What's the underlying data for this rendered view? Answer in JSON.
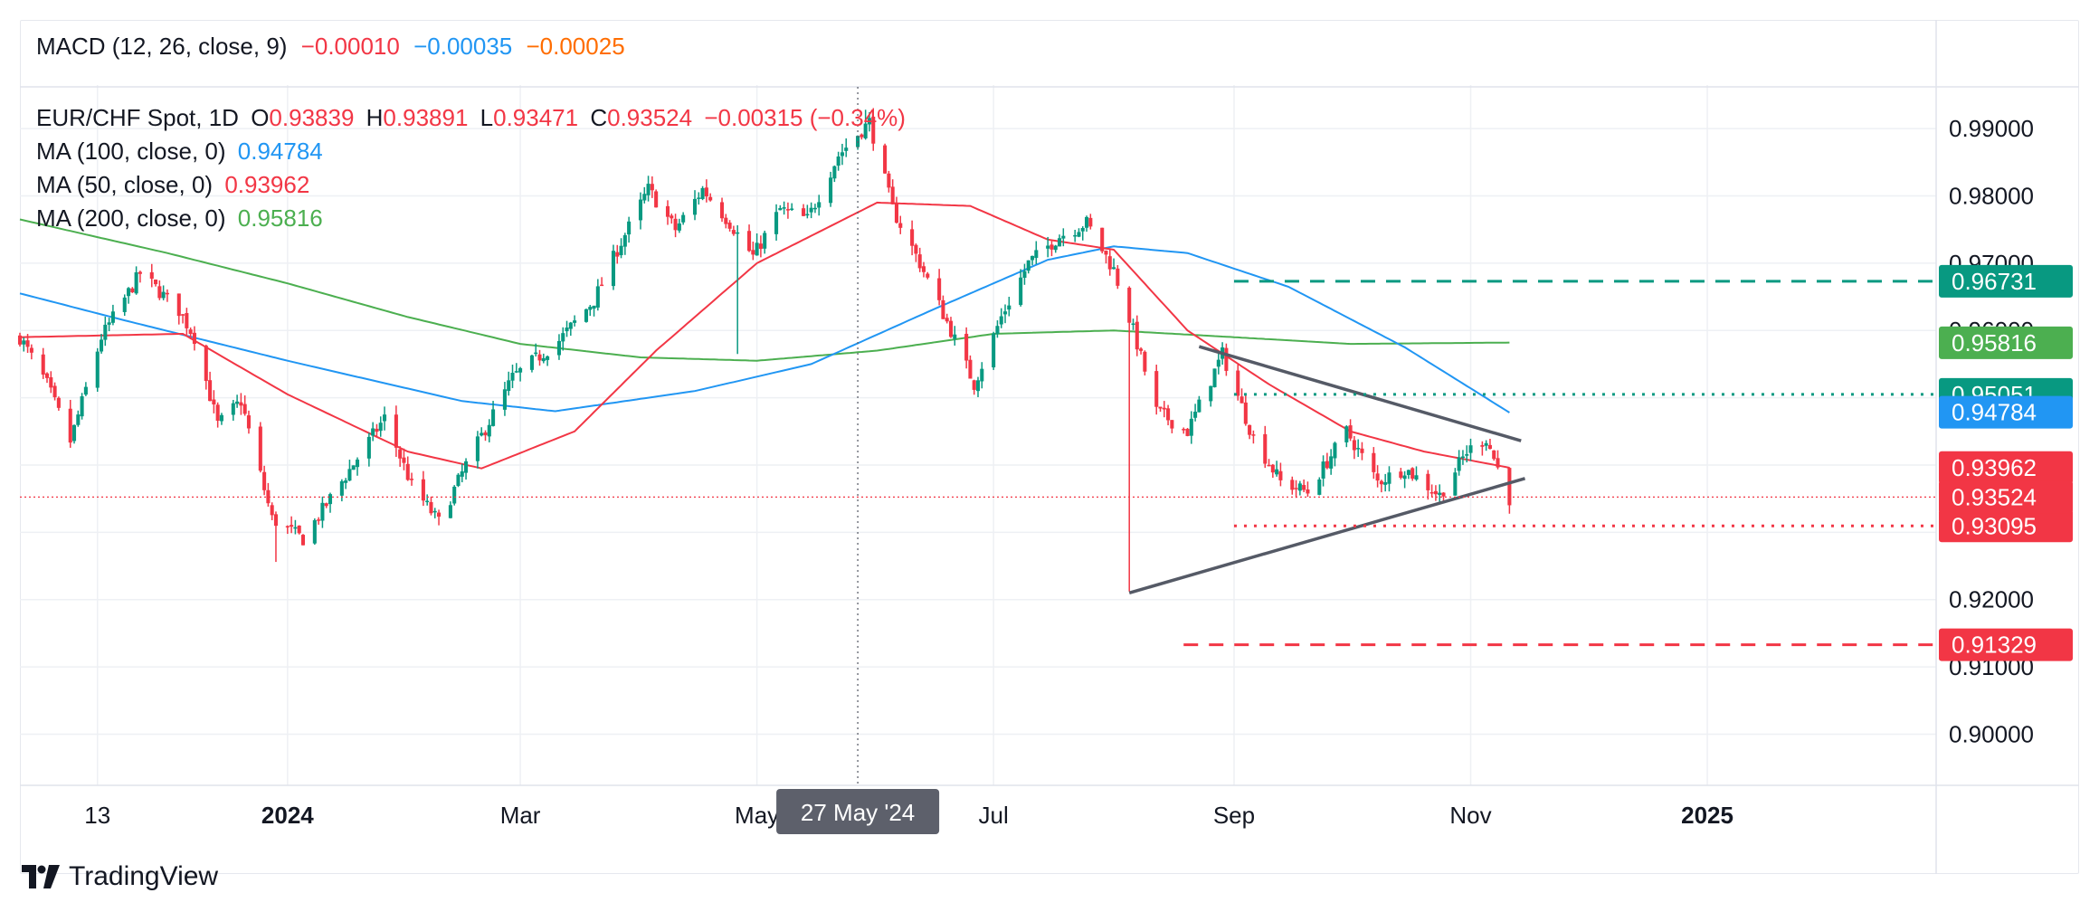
{
  "macd": {
    "label": "MACD (12, 26, close, 9)",
    "v1": "−0.00010",
    "v2": "−0.00035",
    "v3": "−0.00025"
  },
  "legend": {
    "symbol": "EUR/CHF Spot, 1D",
    "o_label": "O",
    "o_value": "0.93839",
    "h_label": "H",
    "h_value": "0.93891",
    "l_label": "L",
    "l_value": "0.93471",
    "c_label": "C",
    "c_value": "0.93524",
    "change": "−0.00315 (−0.34%)",
    "ma100_label": "MA (100, close, 0)",
    "ma100_value": "0.94784",
    "ma50_label": "MA (50, close, 0)",
    "ma50_value": "0.93962",
    "ma200_label": "MA (200, close, 0)",
    "ma200_value": "0.95816"
  },
  "brand": {
    "name": "TradingView"
  },
  "chart_data": {
    "type": "candlestick",
    "y_axis_ticks": [
      0.99,
      0.98,
      0.97,
      0.96,
      0.95,
      0.94,
      0.93,
      0.92,
      0.91,
      0.9
    ],
    "y_tick_labels": [
      "0.99000",
      "0.98000",
      "0.97000",
      "0.96000",
      "0.95000",
      "0.94000",
      "0.93000",
      "0.92000",
      "0.91000",
      "0.90000"
    ],
    "ylim": [
      0.8924,
      0.9962
    ],
    "x_tick_labels": [
      {
        "label": "13",
        "date": "2023-11-13",
        "bold": false
      },
      {
        "label": "2024",
        "date": "2024-01-01",
        "bold": true
      },
      {
        "label": "Mar",
        "date": "2024-03-01",
        "bold": false
      },
      {
        "label": "May",
        "date": "2024-05-01",
        "bold": false
      },
      {
        "label": "Jul",
        "date": "2024-07-01",
        "bold": false
      },
      {
        "label": "Sep",
        "date": "2024-09-01",
        "bold": false
      },
      {
        "label": "Nov",
        "date": "2024-11-01",
        "bold": false
      },
      {
        "label": "2025",
        "date": "2025-01-01",
        "bold": true
      }
    ],
    "crosshair": {
      "date": "2024-05-27",
      "label": "27 May '24"
    },
    "price_anchors": [
      [
        "2023-10-24",
        0.959
      ],
      [
        "2023-10-31",
        0.952
      ],
      [
        "2023-11-06",
        0.9435
      ],
      [
        "2023-11-14",
        0.959
      ],
      [
        "2023-11-24",
        0.9685
      ],
      [
        "2023-12-04",
        0.963
      ],
      [
        "2023-12-08",
        0.959
      ],
      [
        "2023-12-14",
        0.946
      ],
      [
        "2023-12-20",
        0.9495
      ],
      [
        "2023-12-28",
        0.932
      ],
      [
        "2024-01-05",
        0.929
      ],
      [
        "2024-01-12",
        0.935
      ],
      [
        "2024-01-26",
        0.947
      ],
      [
        "2024-02-02",
        0.937
      ],
      [
        "2024-02-09",
        0.9315
      ],
      [
        "2024-02-16",
        0.94
      ],
      [
        "2024-02-28",
        0.953
      ],
      [
        "2024-03-11",
        0.9585
      ],
      [
        "2024-03-20",
        0.9645
      ],
      [
        "2024-03-26",
        0.972
      ],
      [
        "2024-04-03",
        0.981
      ],
      [
        "2024-04-10",
        0.975
      ],
      [
        "2024-04-17",
        0.981
      ],
      [
        "2024-04-24",
        0.976
      ],
      [
        "2024-04-30",
        0.971
      ],
      [
        "2024-05-07",
        0.978
      ],
      [
        "2024-05-14",
        0.9765
      ],
      [
        "2024-05-22",
        0.986
      ],
      [
        "2024-05-30",
        0.991
      ],
      [
        "2024-06-05",
        0.978
      ],
      [
        "2024-06-12",
        0.97
      ],
      [
        "2024-06-20",
        0.96
      ],
      [
        "2024-06-26",
        0.952
      ],
      [
        "2024-07-03",
        0.962
      ],
      [
        "2024-07-10",
        0.97
      ],
      [
        "2024-07-18",
        0.974
      ],
      [
        "2024-07-25",
        0.976
      ],
      [
        "2024-08-01",
        0.969
      ],
      [
        "2024-08-06",
        0.96
      ],
      [
        "2024-08-12",
        0.948
      ],
      [
        "2024-08-20",
        0.945
      ],
      [
        "2024-08-29",
        0.9565
      ],
      [
        "2024-09-06",
        0.944
      ],
      [
        "2024-09-13",
        0.9375
      ],
      [
        "2024-09-20",
        0.936
      ],
      [
        "2024-09-30",
        0.945
      ],
      [
        "2024-10-08",
        0.9375
      ],
      [
        "2024-10-15",
        0.9395
      ],
      [
        "2024-10-24",
        0.9355
      ],
      [
        "2024-10-31",
        0.942
      ],
      [
        "2024-11-05",
        0.944
      ],
      [
        "2024-11-11",
        0.935
      ]
    ],
    "wick_extremes": [
      {
        "date": "2023-12-29",
        "low": 0.9256
      },
      {
        "date": "2024-04-26",
        "low": 0.9565
      },
      {
        "date": "2024-05-29",
        "high": 0.9928
      },
      {
        "date": "2024-08-05",
        "low": 0.9212
      }
    ],
    "ma50_anchors": [
      [
        "2023-10-24",
        0.959
      ],
      [
        "2023-12-05",
        0.9595
      ],
      [
        "2024-01-01",
        0.9505
      ],
      [
        "2024-02-01",
        0.942
      ],
      [
        "2024-02-20",
        0.9395
      ],
      [
        "2024-03-15",
        0.945
      ],
      [
        "2024-04-05",
        0.957
      ],
      [
        "2024-05-01",
        0.97
      ],
      [
        "2024-06-01",
        0.979
      ],
      [
        "2024-06-25",
        0.9785
      ],
      [
        "2024-07-15",
        0.9735
      ],
      [
        "2024-08-01",
        0.972
      ],
      [
        "2024-08-20",
        0.96
      ],
      [
        "2024-09-10",
        0.952
      ],
      [
        "2024-10-01",
        0.945
      ],
      [
        "2024-10-20",
        0.942
      ],
      [
        "2024-11-11",
        0.9396
      ]
    ],
    "ma100_anchors": [
      [
        "2023-10-24",
        0.9655
      ],
      [
        "2023-11-20",
        0.9615
      ],
      [
        "2024-01-01",
        0.9555
      ],
      [
        "2024-02-15",
        0.9495
      ],
      [
        "2024-03-10",
        0.948
      ],
      [
        "2024-04-15",
        0.951
      ],
      [
        "2024-05-15",
        0.955
      ],
      [
        "2024-06-15",
        0.963
      ],
      [
        "2024-07-15",
        0.9705
      ],
      [
        "2024-08-01",
        0.9725
      ],
      [
        "2024-08-20",
        0.9715
      ],
      [
        "2024-09-15",
        0.9665
      ],
      [
        "2024-10-15",
        0.9575
      ],
      [
        "2024-11-11",
        0.9478
      ]
    ],
    "ma200_anchors": [
      [
        "2023-10-24",
        0.9765
      ],
      [
        "2023-12-01",
        0.9715
      ],
      [
        "2024-01-01",
        0.967
      ],
      [
        "2024-02-01",
        0.962
      ],
      [
        "2024-03-01",
        0.958
      ],
      [
        "2024-04-01",
        0.956
      ],
      [
        "2024-05-01",
        0.9555
      ],
      [
        "2024-06-01",
        0.957
      ],
      [
        "2024-07-01",
        0.9595
      ],
      [
        "2024-08-01",
        0.96
      ],
      [
        "2024-09-01",
        0.959
      ],
      [
        "2024-10-01",
        0.958
      ],
      [
        "2024-11-11",
        0.9582
      ]
    ],
    "trendlines": [
      {
        "from": [
          "2024-08-23",
          0.9576
        ],
        "to": [
          "2024-11-14",
          0.9436
        ],
        "color": "#555a66"
      },
      {
        "from": [
          "2024-08-05",
          0.921
        ],
        "to": [
          "2024-11-15",
          0.938
        ],
        "color": "#555a66"
      }
    ],
    "levels": [
      {
        "value": 0.96731,
        "from": "2024-09-01",
        "color": "#089981",
        "style": "dashed",
        "label": "0.96731",
        "label_color": "#089981"
      },
      {
        "value": 0.95051,
        "from": "2024-09-01",
        "color": "#089981",
        "style": "dotted",
        "label": "0.95051",
        "label_color": "#089981"
      },
      {
        "value": 0.93095,
        "from": "2024-09-01",
        "color": "#f23645",
        "style": "dotted",
        "label": "0.93095",
        "label_color": "#f23645"
      },
      {
        "value": 0.91329,
        "from": "2024-08-19",
        "color": "#f23645",
        "style": "dashed",
        "label": "0.91329",
        "label_color": "#f23645"
      }
    ],
    "price_line": {
      "value": 0.93524,
      "color": "#f23645"
    },
    "axis_labels": [
      {
        "value": 0.95816,
        "label": "0.95816",
        "color": "#4caf50"
      },
      {
        "value": 0.94784,
        "label": "0.94784",
        "color": "#2196f3"
      },
      {
        "value": 0.93962,
        "label": "0.93962",
        "color": "#f23645"
      },
      {
        "value": 0.93524,
        "label": "0.93524",
        "color": "#f23645"
      }
    ],
    "colors": {
      "up": "#089981",
      "down": "#f23645",
      "ma50": "#f23645",
      "ma100": "#2196f3",
      "ma200": "#4caf50",
      "grid": "#eef0f4",
      "axis_text": "#131722"
    }
  }
}
